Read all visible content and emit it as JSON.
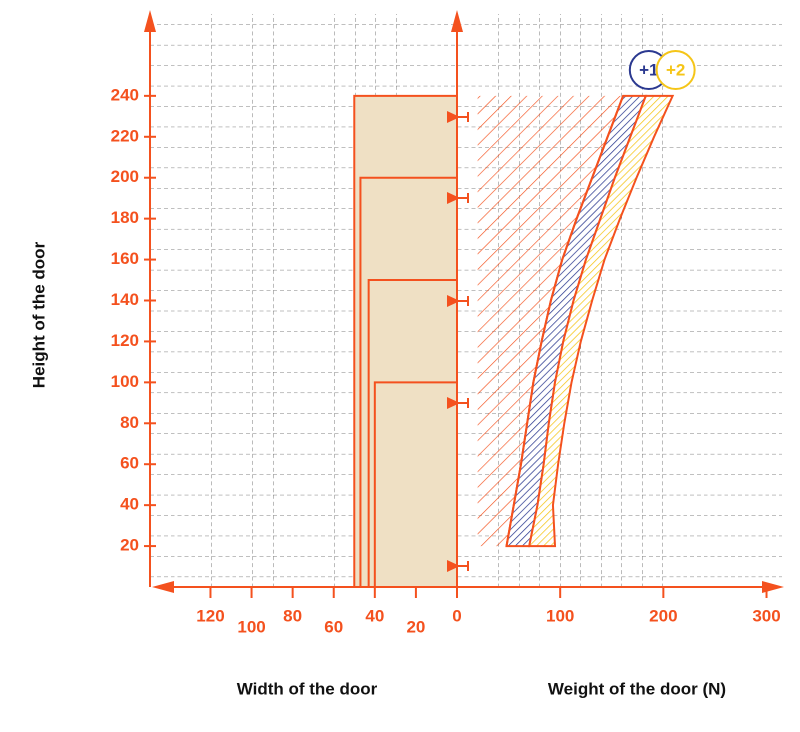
{
  "chart_data": {
    "type": "door-diagram",
    "y_label": "Height of the door",
    "width_label": "Width of the door",
    "weight_label": "Weight of the door (N)",
    "ylim": [
      0,
      280
    ],
    "yticks": [
      20,
      40,
      60,
      80,
      100,
      120,
      140,
      160,
      180,
      200,
      220,
      240
    ],
    "width_lim": [
      0,
      147
    ],
    "width_ticks": [
      120,
      100,
      80,
      60,
      40,
      20,
      0
    ],
    "xlim": [
      0,
      315
    ],
    "xticks": [
      100,
      200,
      300
    ],
    "doors": {
      "heights": [
        240,
        200,
        150,
        100
      ],
      "widths": [
        50,
        47,
        43,
        40
      ]
    },
    "heights": [
      20,
      40,
      60,
      80,
      100,
      120,
      140,
      160,
      180,
      200,
      220,
      240
    ],
    "limit_min": 20,
    "limit_curve": [
      48,
      55,
      62,
      68,
      74,
      82,
      91,
      102,
      116,
      131,
      146,
      161
    ],
    "limit_color": "#f4511e",
    "bands": [
      {
        "name": "+1",
        "color": "#2b3990",
        "values": [
          70,
          78,
          84,
          89,
          95,
          103,
          113,
          125,
          139,
          153,
          168,
          183
        ]
      },
      {
        "name": "+2",
        "color": "#f5c518",
        "values": [
          95,
          93,
          98,
          104,
          111,
          120,
          131,
          143,
          158,
          174,
          191,
          209
        ]
      }
    ],
    "door_color": "#efe0c4"
  }
}
